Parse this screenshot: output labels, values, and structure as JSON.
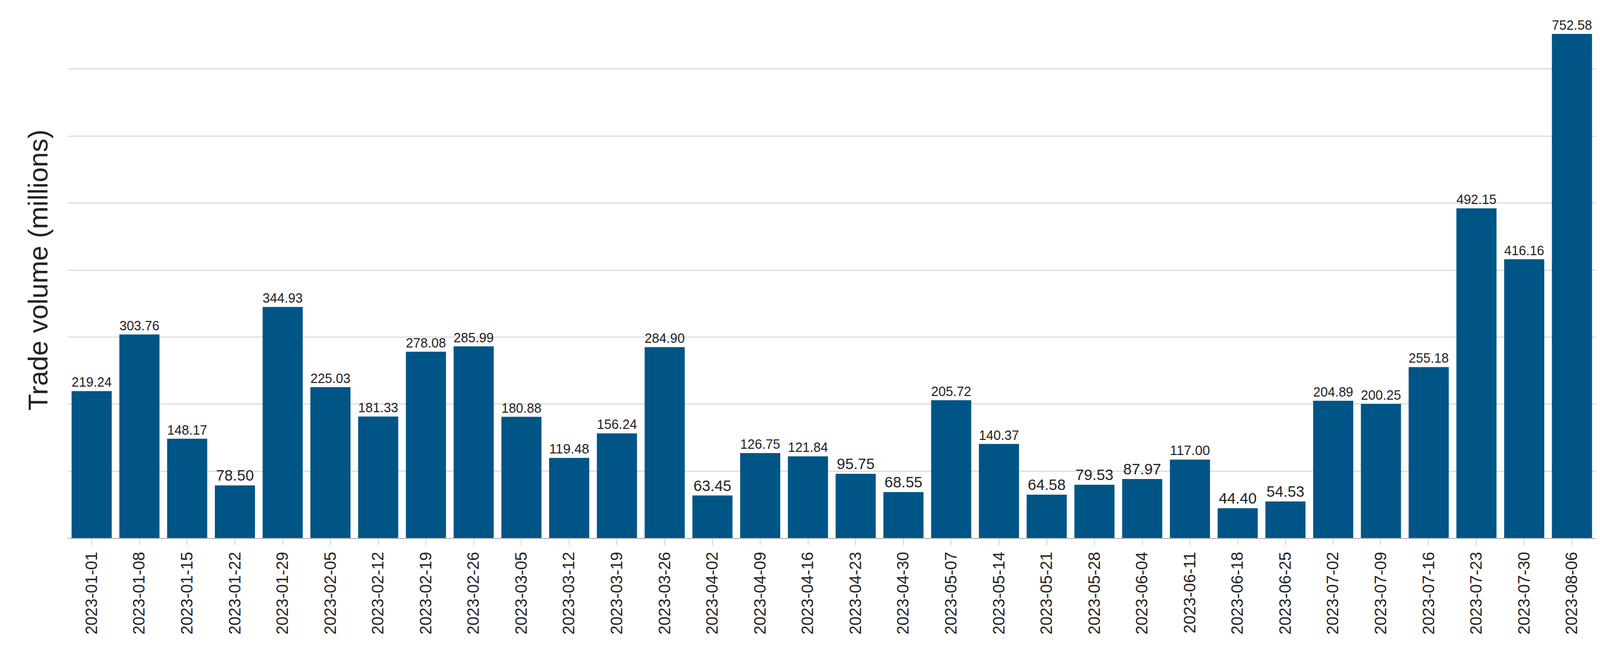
{
  "chart_data": {
    "type": "bar",
    "ylabel": "Trade volume (millions)",
    "categories": [
      "2023-01-01",
      "2023-01-08",
      "2023-01-15",
      "2023-01-22",
      "2023-01-29",
      "2023-02-05",
      "2023-02-12",
      "2023-02-19",
      "2023-02-26",
      "2023-03-05",
      "2023-03-12",
      "2023-03-19",
      "2023-03-26",
      "2023-04-02",
      "2023-04-09",
      "2023-04-16",
      "2023-04-23",
      "2023-04-30",
      "2023-05-07",
      "2023-05-14",
      "2023-05-21",
      "2023-05-28",
      "2023-06-04",
      "2023-06-11",
      "2023-06-18",
      "2023-06-25",
      "2023-07-02",
      "2023-07-09",
      "2023-07-16",
      "2023-07-23",
      "2023-07-30",
      "2023-08-06"
    ],
    "values": [
      219.24,
      303.76,
      148.17,
      78.5,
      344.93,
      225.03,
      181.33,
      278.08,
      285.99,
      180.88,
      119.48,
      156.24,
      284.9,
      63.45,
      126.75,
      121.84,
      95.75,
      68.55,
      205.72,
      140.37,
      64.58,
      79.53,
      87.97,
      117.0,
      44.4,
      54.53,
      204.89,
      200.25,
      255.18,
      492.15,
      416.16,
      752.58
    ],
    "value_labels": [
      "219.24",
      "303.76",
      "148.17",
      "78.50",
      "344.93",
      "225.03",
      "181.33",
      "278.08",
      "285.99",
      "180.88",
      "119.48",
      "156.24",
      "284.90",
      "63.45",
      "126.75",
      "121.84",
      "95.75",
      "68.55",
      "205.72",
      "140.37",
      "64.58",
      "79.53",
      "87.97",
      "117.00",
      "44.40",
      "54.53",
      "204.89",
      "200.25",
      "255.18",
      "492.15",
      "416.16",
      "752.58"
    ],
    "color": "#005587",
    "ylim": [
      0,
      800
    ],
    "yticks": [
      0,
      100,
      200,
      300,
      400,
      500,
      600,
      700,
      800
    ],
    "grid": true,
    "data_labels": true,
    "tick_labels": "x"
  }
}
